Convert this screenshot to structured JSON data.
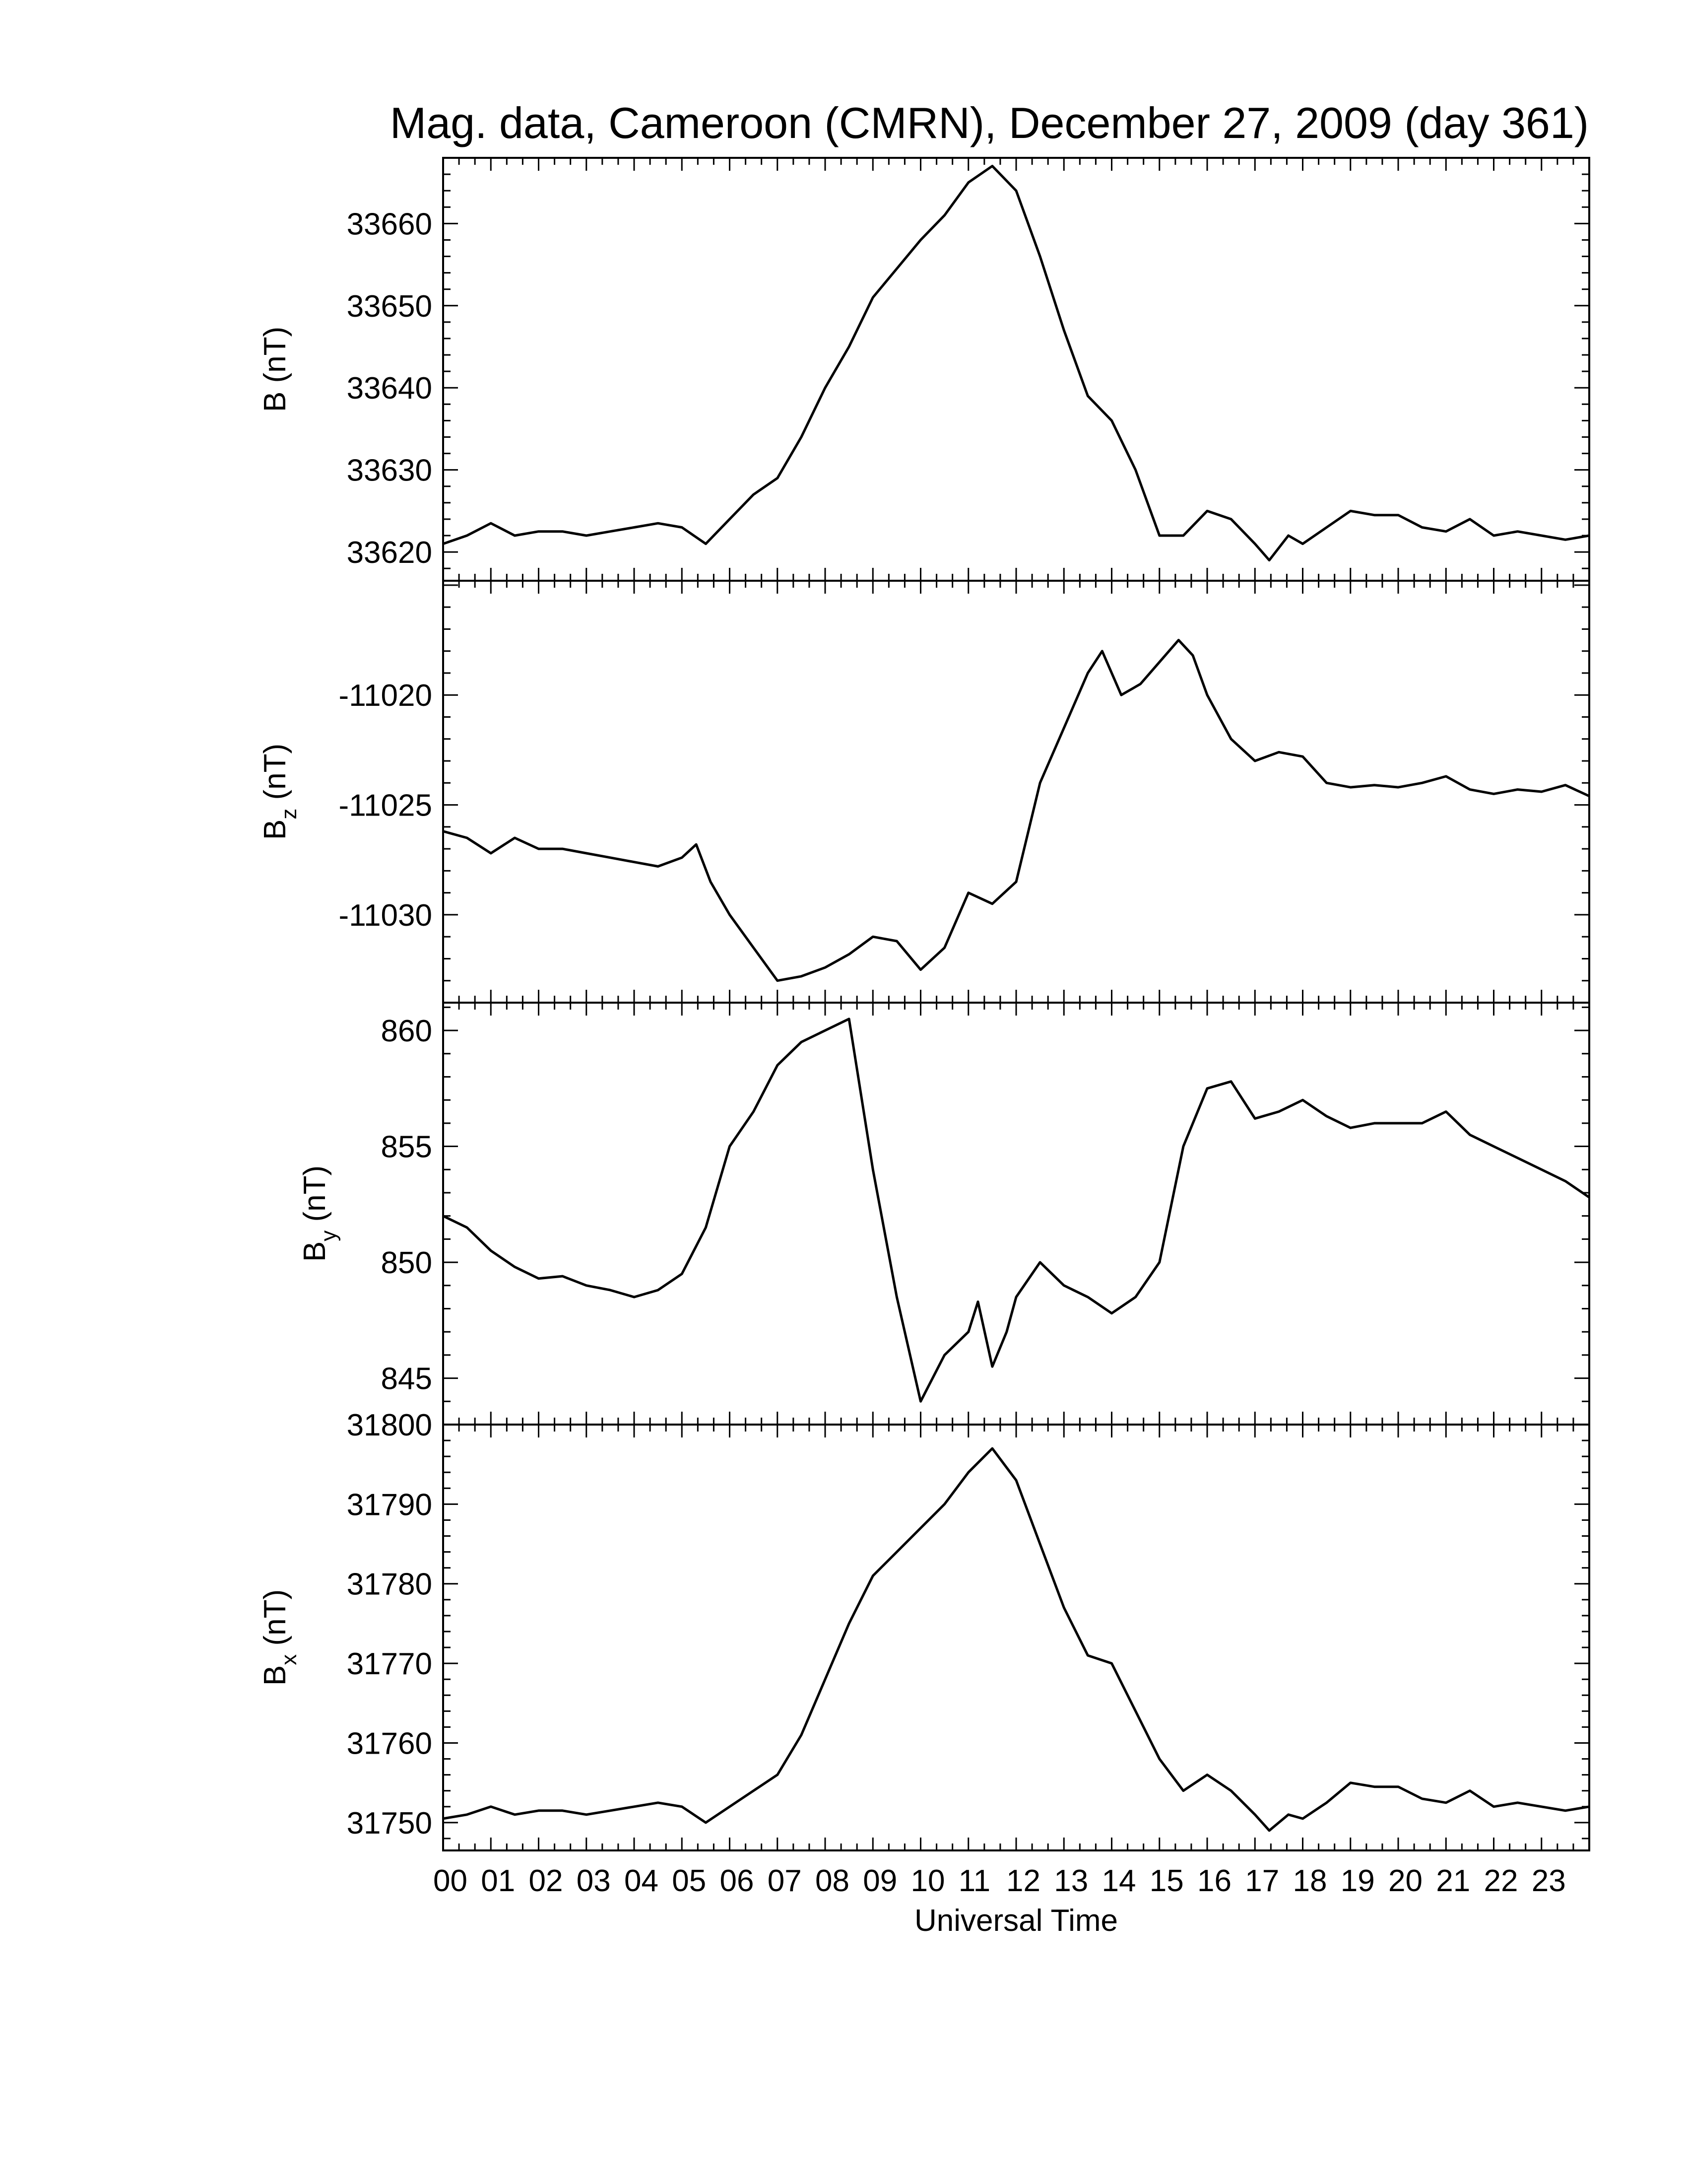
{
  "chart_data": {
    "type": "line",
    "title": "Mag. data, Cameroon (CMRN), December 27, 2009 (day 361)",
    "xlabel": "Universal Time",
    "x_tick_labels": [
      "00",
      "01",
      "02",
      "03",
      "04",
      "05",
      "06",
      "07",
      "08",
      "09",
      "10",
      "11",
      "12",
      "13",
      "14",
      "15",
      "16",
      "17",
      "18",
      "19",
      "20",
      "21",
      "22",
      "23"
    ],
    "xlim_hours": [
      0,
      24
    ],
    "panels": [
      {
        "id": "B",
        "ylabel": "B (nT)",
        "ylabel_main": "B",
        "ylabel_sub": "",
        "ylabel_unit": " (nT)",
        "ylim": [
          33616.5,
          33668
        ],
        "yticks": [
          33620,
          33630,
          33640,
          33650,
          33660
        ],
        "x": [
          0,
          0.5,
          1,
          1.5,
          2,
          2.5,
          3,
          3.5,
          4,
          4.5,
          5,
          5.5,
          6,
          6.5,
          7,
          7.5,
          8,
          8.5,
          9,
          9.5,
          10,
          10.5,
          11,
          11.5,
          12,
          12.5,
          13,
          13.5,
          14,
          14.5,
          15,
          15.5,
          16,
          16.5,
          17,
          17.3,
          17.7,
          18,
          18.5,
          19,
          19.5,
          20,
          20.5,
          21,
          21.5,
          22,
          22.5,
          23,
          23.5,
          24
        ],
        "y": [
          33621,
          33622,
          33623.5,
          33622,
          33622.5,
          33622.5,
          33622,
          33622.5,
          33623,
          33623.5,
          33623,
          33621,
          33624,
          33627,
          33629,
          33634,
          33640,
          33645,
          33651,
          33654.5,
          33658,
          33661,
          33665,
          33667,
          33664,
          33656,
          33647,
          33639,
          33636,
          33630,
          33622,
          33622,
          33625,
          33624,
          33621,
          33619,
          33622,
          33621,
          33623,
          33625,
          33624.5,
          33624.5,
          33623,
          33622.5,
          33624,
          33622,
          33622.5,
          33622,
          33621.5,
          33622
        ]
      },
      {
        "id": "Bz",
        "ylabel": "Bz (nT)",
        "ylabel_main": "B",
        "ylabel_sub": "z",
        "ylabel_unit": " (nT)",
        "ylim": [
          -11034,
          -11014.8
        ],
        "yticks": [
          -11030,
          -11025,
          -11020
        ],
        "x": [
          0,
          0.5,
          1,
          1.5,
          2,
          2.5,
          3,
          3.5,
          4,
          4.5,
          5,
          5.3,
          5.6,
          6,
          6.5,
          7,
          7.5,
          8,
          8.5,
          9,
          9.5,
          10,
          10.5,
          11,
          11.5,
          12,
          12.5,
          13,
          13.5,
          13.8,
          14.2,
          14.6,
          15,
          15.4,
          15.7,
          16,
          16.5,
          17,
          17.5,
          18,
          18.5,
          19,
          19.5,
          20,
          20.5,
          21,
          21.5,
          22,
          22.5,
          23,
          23.5,
          24
        ],
        "y": [
          -11026.2,
          -11026.5,
          -11027.2,
          -11026.5,
          -11027,
          -11027,
          -11027.2,
          -11027.4,
          -11027.6,
          -11027.8,
          -11027.4,
          -11026.8,
          -11028.5,
          -11030,
          -11031.5,
          -11033,
          -11032.8,
          -11032.4,
          -11031.8,
          -11031,
          -11031.2,
          -11032.5,
          -11031.5,
          -11029,
          -11029.5,
          -11028.5,
          -11024,
          -11021.5,
          -11019,
          -11018,
          -11020,
          -11019.5,
          -11018.5,
          -11017.5,
          -11018.2,
          -11020,
          -11022,
          -11023,
          -11022.6,
          -11022.8,
          -11024,
          -11024.2,
          -11024.1,
          -11024.2,
          -11024,
          -11023.7,
          -11024.3,
          -11024.5,
          -11024.3,
          -11024.4,
          -11024.1,
          -11024.6
        ]
      },
      {
        "id": "By",
        "ylabel": "By (nT)",
        "ylabel_main": "B",
        "ylabel_sub": "y",
        "ylabel_unit": " (nT)",
        "ylim": [
          843,
          861.2
        ],
        "yticks": [
          845,
          850,
          855,
          860
        ],
        "x": [
          0,
          0.5,
          1,
          1.5,
          2,
          2.5,
          3,
          3.5,
          4,
          4.5,
          5,
          5.5,
          6,
          6.5,
          7,
          7.5,
          8,
          8.5,
          9,
          9.5,
          10,
          10.5,
          11,
          11.2,
          11.5,
          11.8,
          12,
          12.5,
          13,
          13.5,
          14,
          14.5,
          15,
          15.5,
          16,
          16.5,
          17,
          17.5,
          18,
          18.5,
          19,
          19.5,
          20,
          20.5,
          21,
          21.5,
          22,
          22.5,
          23,
          23.5,
          24
        ],
        "y": [
          852,
          851.5,
          850.5,
          849.8,
          849.3,
          849.4,
          849,
          848.8,
          848.5,
          848.8,
          849.5,
          851.5,
          855,
          856.5,
          858.5,
          859.5,
          860,
          860.5,
          854,
          848.5,
          844,
          846,
          847,
          848.3,
          845.5,
          847,
          848.5,
          850,
          849,
          848.5,
          847.8,
          848.5,
          850,
          855,
          857.5,
          857.8,
          856.2,
          856.5,
          857,
          856.3,
          855.8,
          856,
          856,
          856,
          856.5,
          855.5,
          855,
          854.5,
          854,
          853.5,
          852.8
        ]
      },
      {
        "id": "Bx",
        "ylabel": "Bx (nT)",
        "ylabel_main": "B",
        "ylabel_sub": "x",
        "ylabel_unit": " (nT)",
        "ylim": [
          31746.5,
          31800
        ],
        "yticks": [
          31750,
          31760,
          31770,
          31780,
          31790,
          31800
        ],
        "x": [
          0,
          0.5,
          1,
          1.5,
          2,
          2.5,
          3,
          3.5,
          4,
          4.5,
          5,
          5.5,
          6,
          6.5,
          7,
          7.5,
          8,
          8.5,
          9,
          9.5,
          10,
          10.5,
          11,
          11.5,
          12,
          12.5,
          13,
          13.5,
          14,
          14.5,
          15,
          15.5,
          16,
          16.5,
          17,
          17.3,
          17.7,
          18,
          18.5,
          19,
          19.5,
          20,
          20.5,
          21,
          21.5,
          22,
          22.5,
          23,
          23.5,
          24
        ],
        "y": [
          31750.5,
          31751,
          31752,
          31751,
          31751.5,
          31751.5,
          31751,
          31751.5,
          31752,
          31752.5,
          31752,
          31750,
          31752,
          31754,
          31756,
          31761,
          31768,
          31775,
          31781,
          31784,
          31787,
          31790,
          31794,
          31797,
          31793,
          31785,
          31777,
          31771,
          31770,
          31764,
          31758,
          31754,
          31756,
          31754,
          31751,
          31749,
          31751,
          31750.5,
          31752.5,
          31755,
          31754.5,
          31754.5,
          31753,
          31752.5,
          31754,
          31752,
          31752.5,
          31752,
          31751.5,
          31752
        ]
      }
    ]
  }
}
